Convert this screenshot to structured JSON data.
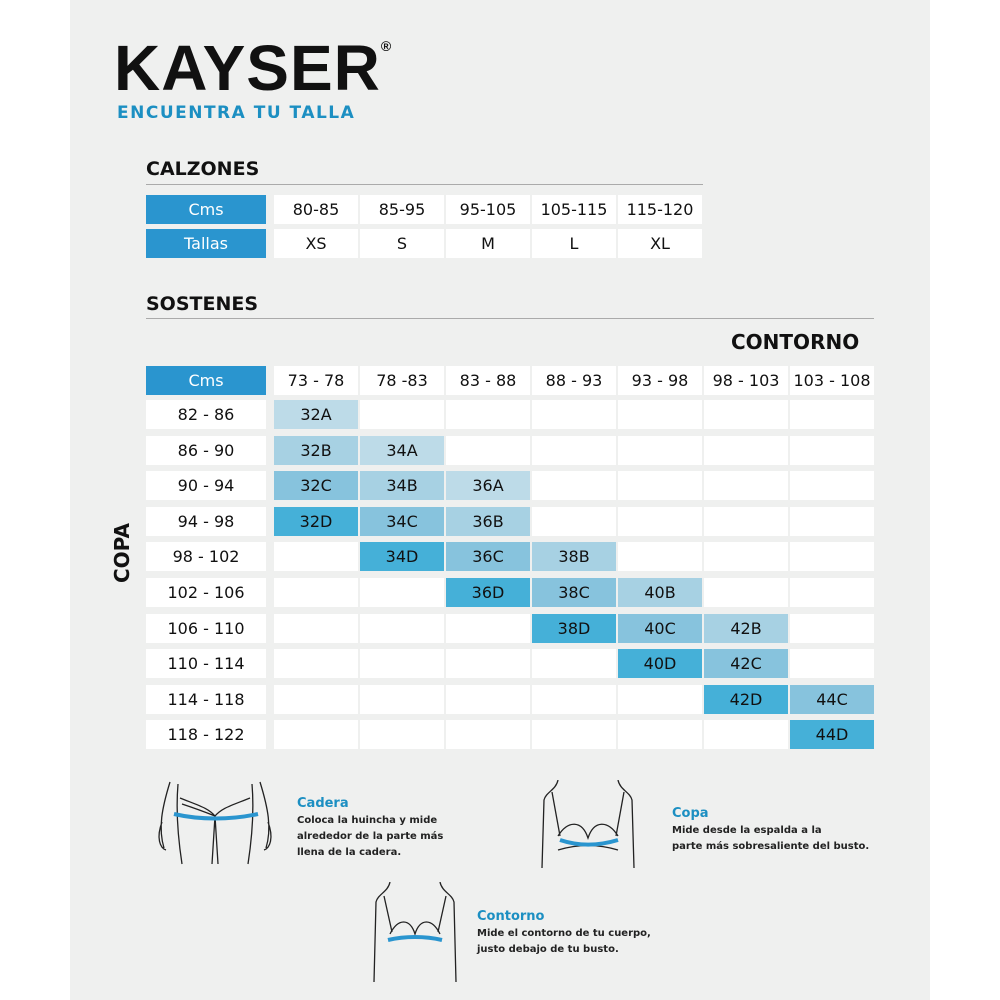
{
  "brand": {
    "name": "KAYSER",
    "reg": "®",
    "tagline": "ENCUENTRA TU TALLA"
  },
  "colors": {
    "header": "#2a95cf",
    "A": "#bddbe8",
    "B": "#a7d1e3",
    "C": "#87c3dd",
    "D": "#45b0d8"
  },
  "calzones": {
    "title": "CALZONES",
    "row_labels": [
      "Cms",
      "Tallas"
    ],
    "cms": [
      "80-85",
      "85-95",
      "95-105",
      "105-115",
      "115-120"
    ],
    "tallas": [
      "XS",
      "S",
      "M",
      "L",
      "XL"
    ]
  },
  "sostenes": {
    "title": "SOSTENES",
    "col_axis": "CONTORNO",
    "row_axis": "COPA",
    "corner": "Cms",
    "columns": [
      "73 - 78",
      "78 -83",
      "83 - 88",
      "88 - 93",
      "93 - 98",
      "98 - 103",
      "103 - 108"
    ],
    "rows": [
      "82 - 86",
      "86 - 90",
      "90 - 94",
      "94 - 98",
      "98 - 102",
      "102 - 106",
      "106 - 110",
      "110 - 114",
      "114 - 118",
      "118 - 122"
    ],
    "grid": [
      [
        "32A",
        "",
        "",
        "",
        "",
        "",
        ""
      ],
      [
        "32B",
        "34A",
        "",
        "",
        "",
        "",
        ""
      ],
      [
        "32C",
        "34B",
        "36A",
        "",
        "",
        "",
        ""
      ],
      [
        "32D",
        "34C",
        "36B",
        "",
        "",
        "",
        ""
      ],
      [
        "",
        "34D",
        "36C",
        "38B",
        "",
        "",
        ""
      ],
      [
        "",
        "",
        "36D",
        "38C",
        "40B",
        "",
        ""
      ],
      [
        "",
        "",
        "",
        "38D",
        "40C",
        "42B",
        ""
      ],
      [
        "",
        "",
        "",
        "",
        "40D",
        "42C",
        ""
      ],
      [
        "",
        "",
        "",
        "",
        "",
        "42D",
        "44C"
      ],
      [
        "",
        "",
        "",
        "",
        "",
        "",
        "44D"
      ]
    ]
  },
  "guide": [
    {
      "title": "Cadera",
      "text": [
        "Coloca la huincha y mide",
        "alrededor de la parte más",
        "llena de la cadera."
      ]
    },
    {
      "title": "Copa",
      "text": [
        "Mide desde la espalda a la",
        "parte más sobresaliente del busto."
      ]
    },
    {
      "title": "Contorno",
      "text": [
        "Mide el contorno de tu cuerpo,",
        "justo debajo de tu busto."
      ]
    }
  ]
}
